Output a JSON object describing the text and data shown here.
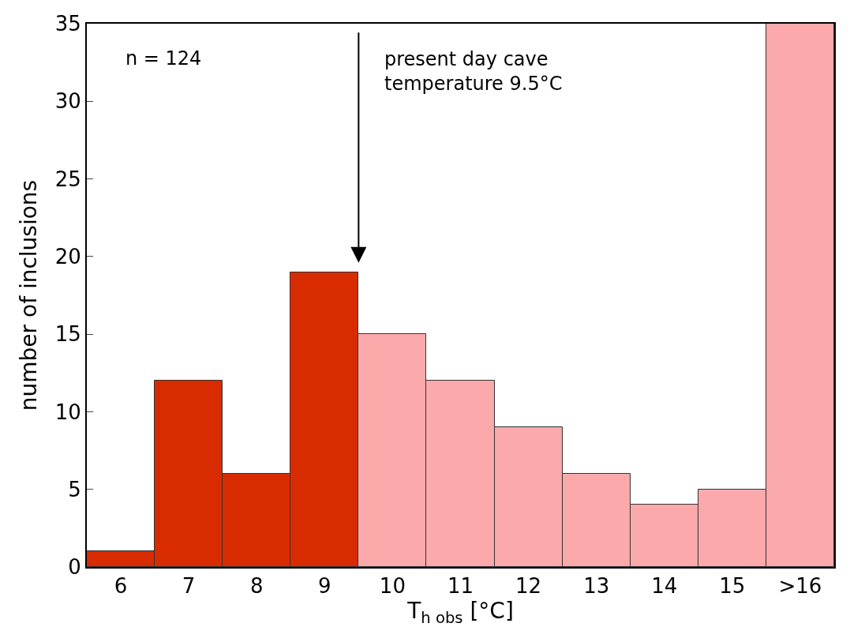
{
  "chart_data": {
    "type": "bar",
    "categories": [
      "6",
      "7",
      "8",
      "9",
      "10",
      "11",
      "12",
      "13",
      "14",
      "15",
      ">16"
    ],
    "values": [
      1,
      12,
      6,
      19,
      15,
      12,
      9,
      6,
      4,
      5,
      35
    ],
    "colors": [
      "#d92b00",
      "#d92b00",
      "#d92b00",
      "#d92b00",
      "#fca9ab",
      "#fca9ab",
      "#fca9ab",
      "#fca9ab",
      "#fca9ab",
      "#fca9ab",
      "#fca9ab"
    ],
    "xlabel": "T$_{h obs}$ [°C]",
    "ylabel": "number of inclusions",
    "ylim": [
      0,
      35
    ],
    "yticks": [
      0,
      5,
      10,
      15,
      20,
      25,
      30,
      35
    ],
    "annotations": [
      "n = 124",
      "present day cave temperature 9.5°C"
    ],
    "legend": false
  }
}
